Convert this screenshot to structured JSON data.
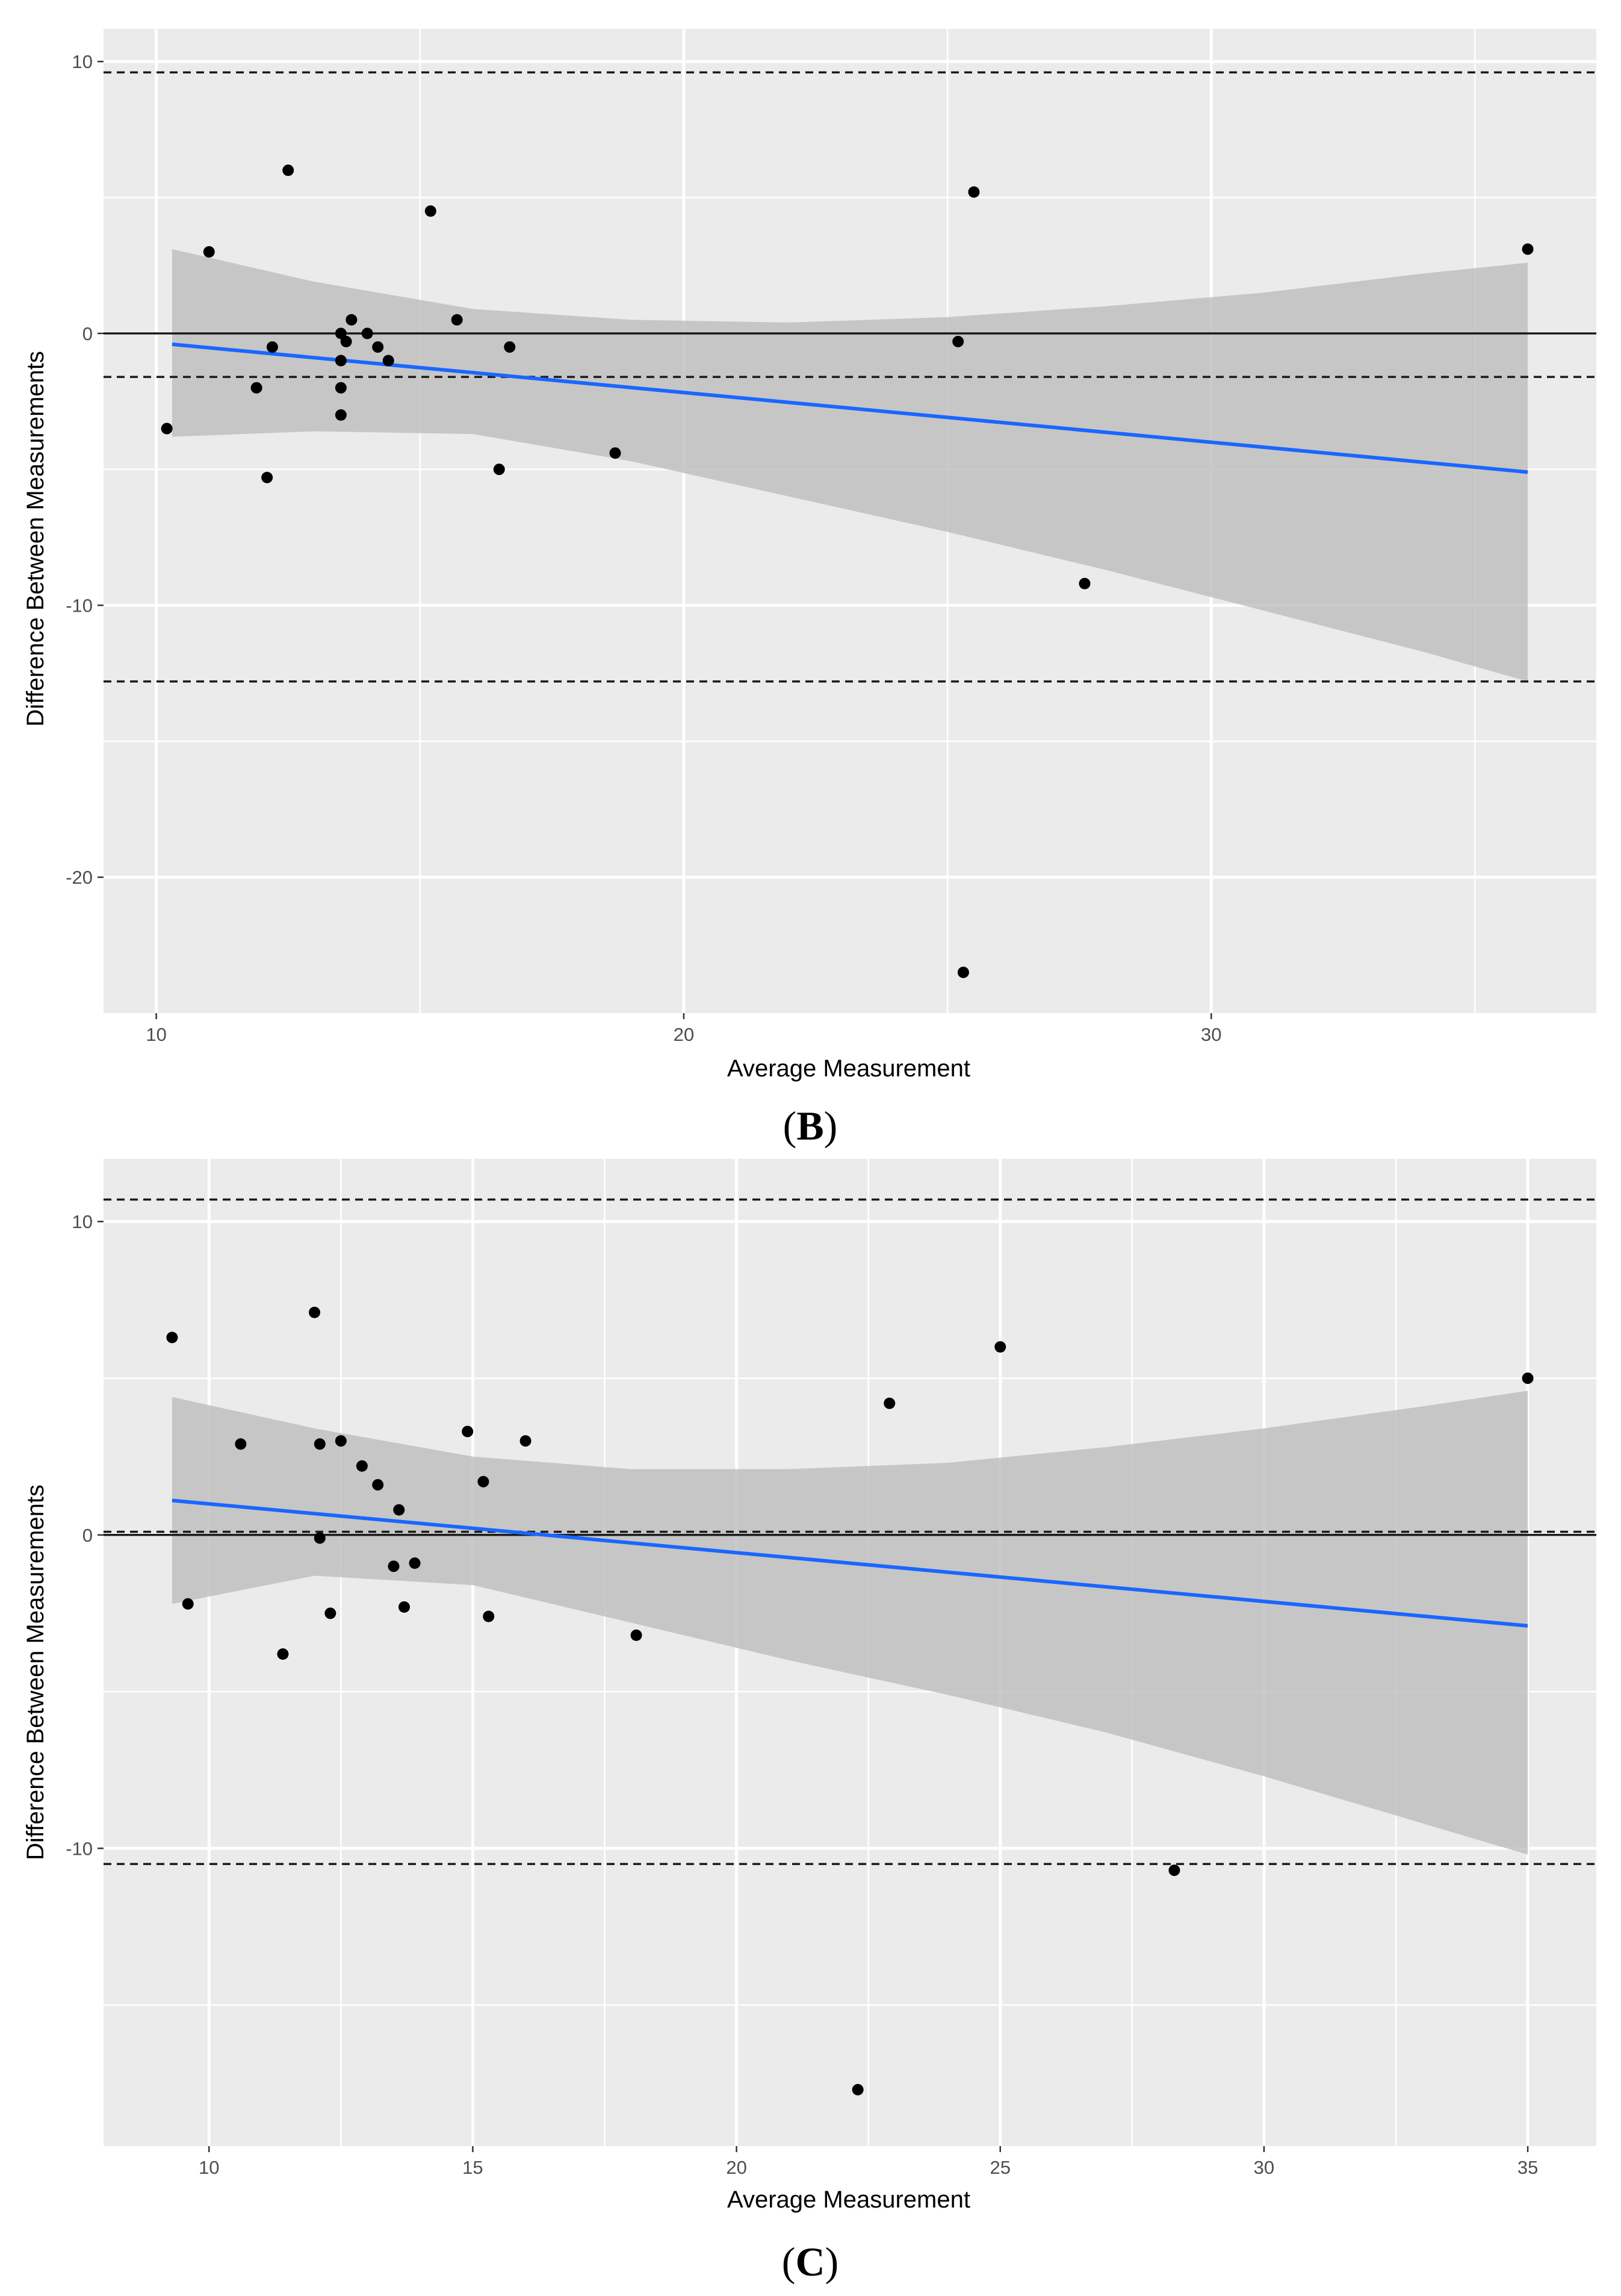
{
  "chart_data": [
    {
      "type": "scatter",
      "panel_label": "B",
      "xlabel": "Average Measurement",
      "ylabel": "Difference Between Measurements",
      "xlim": [
        9.0,
        37.3
      ],
      "ylim": [
        -25.0,
        11.2
      ],
      "x_ticks": [
        10,
        20,
        30
      ],
      "y_ticks": [
        10,
        0,
        -10,
        -20
      ],
      "x_minor_ticks": [
        15,
        25,
        35
      ],
      "y_minor_ticks": [
        5,
        -5,
        -15
      ],
      "grid": true,
      "points": [
        {
          "x": 10.2,
          "y": -3.5
        },
        {
          "x": 11.0,
          "y": 3.0
        },
        {
          "x": 12.5,
          "y": 6.0
        },
        {
          "x": 11.9,
          "y": -2.0
        },
        {
          "x": 12.2,
          "y": -0.5
        },
        {
          "x": 12.1,
          "y": -5.3
        },
        {
          "x": 13.5,
          "y": 0.0
        },
        {
          "x": 13.6,
          "y": -0.3
        },
        {
          "x": 13.7,
          "y": 0.5
        },
        {
          "x": 14.0,
          "y": 0.0
        },
        {
          "x": 13.5,
          "y": -1.0
        },
        {
          "x": 14.2,
          "y": -0.5
        },
        {
          "x": 14.4,
          "y": -1.0
        },
        {
          "x": 13.5,
          "y": -2.0
        },
        {
          "x": 13.5,
          "y": -3.0
        },
        {
          "x": 15.2,
          "y": 4.5
        },
        {
          "x": 15.7,
          "y": 0.5
        },
        {
          "x": 16.5,
          "y": -5.0
        },
        {
          "x": 16.7,
          "y": -0.5
        },
        {
          "x": 18.7,
          "y": -4.4
        },
        {
          "x": 25.2,
          "y": -0.3
        },
        {
          "x": 25.5,
          "y": 5.2
        },
        {
          "x": 25.3,
          "y": -23.5
        },
        {
          "x": 27.6,
          "y": -9.2
        },
        {
          "x": 36.0,
          "y": 3.1
        }
      ],
      "mean_line": -1.6,
      "upper_loa": 9.6,
      "lower_loa": -12.8,
      "zero_line": 0,
      "regression": {
        "x_start": 10.3,
        "x_end": 36.0,
        "y_start": -0.4,
        "y_end": -5.1
      },
      "ci_band": [
        {
          "x": 10.3,
          "upper": 3.1,
          "lower": -3.8
        },
        {
          "x": 13.0,
          "upper": 1.9,
          "lower": -3.6
        },
        {
          "x": 16.0,
          "upper": 0.9,
          "lower": -3.7
        },
        {
          "x": 19.0,
          "upper": 0.5,
          "lower": -4.7
        },
        {
          "x": 22.0,
          "upper": 0.4,
          "lower": -6.0
        },
        {
          "x": 25.0,
          "upper": 0.6,
          "lower": -7.3
        },
        {
          "x": 28.0,
          "upper": 1.0,
          "lower": -8.7
        },
        {
          "x": 31.0,
          "upper": 1.5,
          "lower": -10.2
        },
        {
          "x": 34.0,
          "upper": 2.2,
          "lower": -11.7
        },
        {
          "x": 36.0,
          "upper": 2.6,
          "lower": -12.8
        }
      ],
      "colors": {
        "panel": "#ebebeb",
        "grid": "#ffffff",
        "points": "#000000",
        "regression": "#1a66ff",
        "band": "#bdbdbd"
      }
    },
    {
      "type": "scatter",
      "panel_label": "C",
      "xlabel": "Average Measurement",
      "ylabel": "Difference Between Measurements",
      "xlim": [
        8.0,
        36.3
      ],
      "ylim": [
        -19.5,
        12.0
      ],
      "x_ticks": [
        10,
        15,
        20,
        25,
        30,
        35
      ],
      "y_ticks": [
        10,
        0,
        -10
      ],
      "x_minor_ticks": [
        12.5,
        17.5,
        22.5,
        27.5,
        32.5
      ],
      "y_minor_ticks": [
        5,
        -5,
        -15
      ],
      "grid": true,
      "points": [
        {
          "x": 9.3,
          "y": 6.3
        },
        {
          "x": 9.6,
          "y": -2.2
        },
        {
          "x": 10.6,
          "y": 2.9
        },
        {
          "x": 11.4,
          "y": -3.8
        },
        {
          "x": 12.0,
          "y": 7.1
        },
        {
          "x": 12.1,
          "y": 2.9
        },
        {
          "x": 12.1,
          "y": -0.1
        },
        {
          "x": 12.3,
          "y": -2.5
        },
        {
          "x": 12.5,
          "y": 3.0
        },
        {
          "x": 12.9,
          "y": 2.2
        },
        {
          "x": 13.2,
          "y": 1.6
        },
        {
          "x": 13.5,
          "y": -1.0
        },
        {
          "x": 13.6,
          "y": 0.8
        },
        {
          "x": 13.7,
          "y": -2.3
        },
        {
          "x": 13.9,
          "y": -0.9
        },
        {
          "x": 14.9,
          "y": 3.3
        },
        {
          "x": 15.2,
          "y": 1.7
        },
        {
          "x": 15.3,
          "y": -2.6
        },
        {
          "x": 16.0,
          "y": 3.0
        },
        {
          "x": 18.1,
          "y": -3.2
        },
        {
          "x": 22.3,
          "y": -17.7
        },
        {
          "x": 22.9,
          "y": 4.2
        },
        {
          "x": 25.0,
          "y": 6.0
        },
        {
          "x": 28.3,
          "y": -10.7
        },
        {
          "x": 35.0,
          "y": 5.0
        }
      ],
      "mean_line": 0.1,
      "upper_loa": 10.7,
      "lower_loa": -10.5,
      "zero_line": 0,
      "regression": {
        "x_start": 9.3,
        "x_end": 35.0,
        "y_start": 1.1,
        "y_end": -2.9
      },
      "ci_band": [
        {
          "x": 9.3,
          "upper": 4.4,
          "lower": -2.2
        },
        {
          "x": 12.0,
          "upper": 3.4,
          "lower": -1.3
        },
        {
          "x": 15.0,
          "upper": 2.5,
          "lower": -1.6
        },
        {
          "x": 18.0,
          "upper": 2.1,
          "lower": -2.8
        },
        {
          "x": 21.0,
          "upper": 2.1,
          "lower": -4.0
        },
        {
          "x": 24.0,
          "upper": 2.3,
          "lower": -5.1
        },
        {
          "x": 27.0,
          "upper": 2.8,
          "lower": -6.3
        },
        {
          "x": 30.0,
          "upper": 3.4,
          "lower": -7.7
        },
        {
          "x": 33.0,
          "upper": 4.1,
          "lower": -9.2
        },
        {
          "x": 35.0,
          "upper": 4.6,
          "lower": -10.2
        }
      ],
      "colors": {
        "panel": "#ebebeb",
        "grid": "#ffffff",
        "points": "#000000",
        "regression": "#1a66ff",
        "band": "#bdbdbd"
      }
    }
  ]
}
